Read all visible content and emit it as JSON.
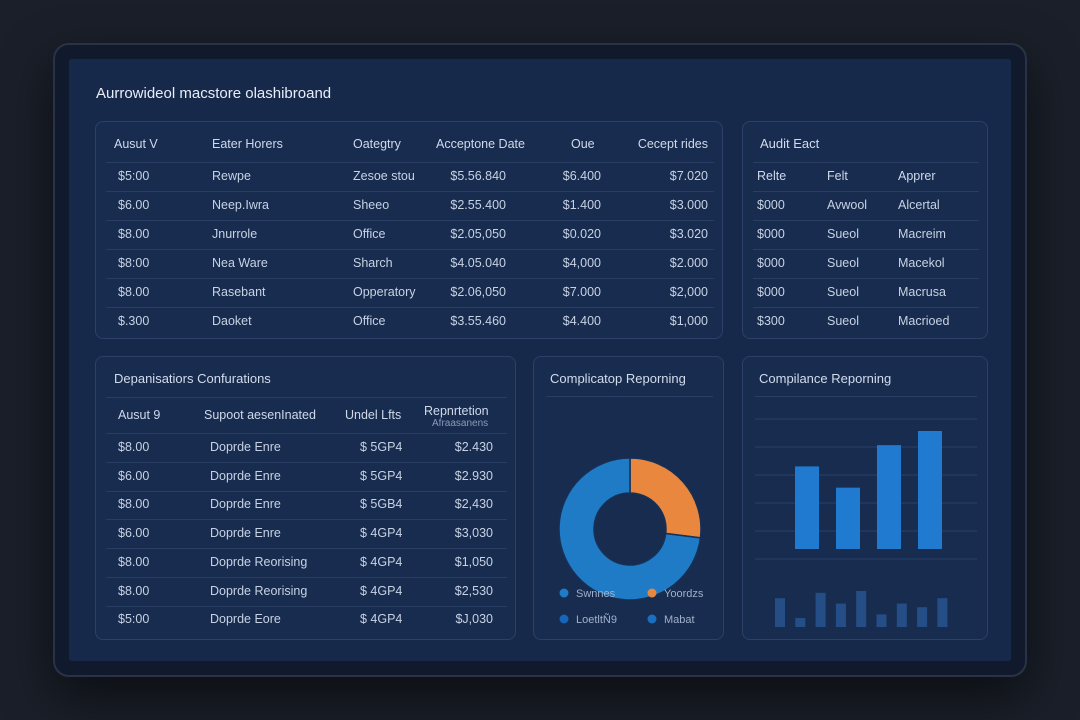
{
  "app_title": "Aurrowideol macstore olashibroand",
  "main_table": {
    "headers": [
      "Ausut V",
      "Eater Horers",
      "Oategtry",
      "Acceptone Date",
      "Oue",
      "Cecept rides"
    ],
    "rows": [
      [
        "$5:00",
        "Rewpe",
        "Zesoe stou",
        "$5.56.840",
        "$6.400",
        "$7.020"
      ],
      [
        "$6.00",
        "Neep.Iwra",
        "Sheeo",
        "$2.55.400",
        "$1.400",
        "$3.000"
      ],
      [
        "$8.00",
        "Jnurrole",
        "Office",
        "$2.05,050",
        "$0.020",
        "$3.020"
      ],
      [
        "$8:00",
        "Nea Ware",
        "Sharch",
        "$4.05.040",
        "$4,000",
        "$2.000"
      ],
      [
        "$8.00",
        "Rasebant",
        "Opperatory",
        "$2.06,050",
        "$7.000",
        "$2,000"
      ],
      [
        "$.300",
        "Daoket",
        "Office",
        "$3.55.460",
        "$4.400",
        "$1,000"
      ]
    ]
  },
  "audit_table": {
    "title": "Audit Eact",
    "headers": [
      "Relte",
      "Felt",
      "Apprer"
    ],
    "rows": [
      [
        "$000",
        "Avwool",
        "Alcertal"
      ],
      [
        "$000",
        "Sueol",
        "Macreim"
      ],
      [
        "$000",
        "Sueol",
        "Macekol"
      ],
      [
        "$000",
        "Sueol",
        "Macrusa"
      ],
      [
        "$300",
        "Sueol",
        "Macrioed"
      ]
    ]
  },
  "config_table": {
    "title": "Depanisatiors Confurations",
    "headers": [
      "Ausut 9",
      "Supoot aesenInated",
      "Undel Lfts",
      "Repnrtetion",
      "Afraasanens"
    ],
    "rows": [
      [
        "$8.00",
        "Doprde Enre",
        "$ 5GP4",
        "$2.430"
      ],
      [
        "$6.00",
        "Doprde Enre",
        "$ 5GP4",
        "$2.930"
      ],
      [
        "$8.00",
        "Doprde Enre",
        "$ 5GB4",
        "$2,430"
      ],
      [
        "$6.00",
        "Doprde Enre",
        "$ 4GP4",
        "$3,030"
      ],
      [
        "$8.00",
        "Doprde Reorising",
        "$ 4GP4",
        "$1,050"
      ],
      [
        "$8.00",
        "Doprde Reorising",
        "$ 4GP4",
        "$2,530"
      ],
      [
        "$5:00",
        "Doprde Eore",
        "$ 4GP4",
        "$J,030"
      ]
    ]
  },
  "donut_card": {
    "title": "Complicatop Reporning",
    "colors": {
      "blue": "#1f7bc6",
      "orange": "#e8873d",
      "dark_blue": "#1565b8",
      "mid_blue": "#1a6fc0"
    },
    "legend": [
      {
        "label": "Swnnes",
        "color": "#1f7bc6"
      },
      {
        "label": "Yoordzs",
        "color": "#e8873d"
      },
      {
        "label": "LoetltÑ9",
        "color": "#1565b8"
      },
      {
        "label": "Mabat",
        "color": "#1a6fc0"
      }
    ]
  },
  "bar_card": {
    "title": "Compilance Reporning",
    "bar_color": "#1f7ad0"
  },
  "chart_data": [
    {
      "type": "pie",
      "title": "Complicatop Reporning",
      "donut": true,
      "slices": [
        {
          "label": "Yoordzs",
          "value": 27,
          "color": "#e8873d"
        },
        {
          "label": "Swnnes",
          "value": 73,
          "color": "#1f7bc6"
        }
      ]
    },
    {
      "type": "bar",
      "title": "Compilance Reporning",
      "values": [
        3.5,
        2.6,
        4.4,
        5.0
      ]
    },
    {
      "type": "bar",
      "values": [
        1.6,
        0.5,
        1.9,
        1.3,
        2.0,
        0.7,
        1.3,
        1.1,
        1.6
      ]
    }
  ]
}
